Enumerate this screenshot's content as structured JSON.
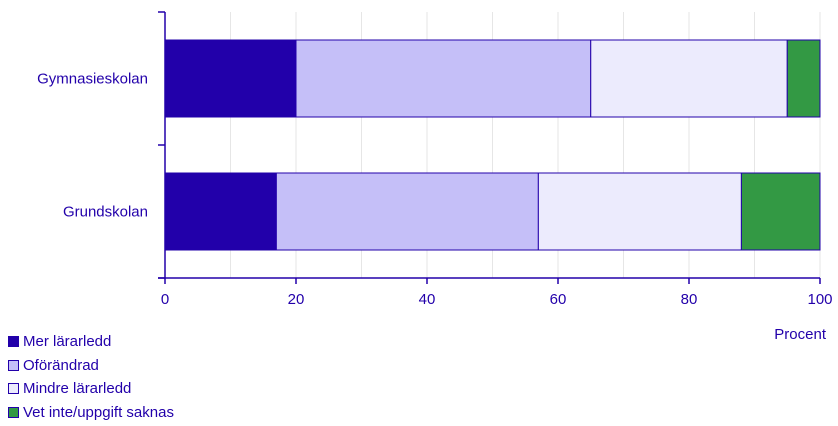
{
  "chart_data": {
    "type": "bar",
    "orientation": "horizontal",
    "stacked": true,
    "categories": [
      "Gymnasieskolan",
      "Grundskolan"
    ],
    "series": [
      {
        "name": "Mer lärarledd",
        "color": "#2200aa",
        "values": [
          20,
          17
        ]
      },
      {
        "name": "Oförändrad",
        "color": "#c5bff8",
        "values": [
          45,
          40
        ]
      },
      {
        "name": "Mindre lärarledd",
        "color": "#ecebfd",
        "values": [
          30,
          31
        ]
      },
      {
        "name": "Vet inte/uppgift saknas",
        "color": "#339944",
        "values": [
          5,
          12
        ]
      }
    ],
    "xlabel": "Procent",
    "xlim": [
      0,
      100
    ],
    "xticks": [
      0,
      20,
      40,
      60,
      80,
      100
    ],
    "grid": "vertical",
    "legend_position": "bottom-left"
  },
  "colors": {
    "text": "#2200aa",
    "grid": "#e6e6e6",
    "outline": "#2200aa"
  }
}
